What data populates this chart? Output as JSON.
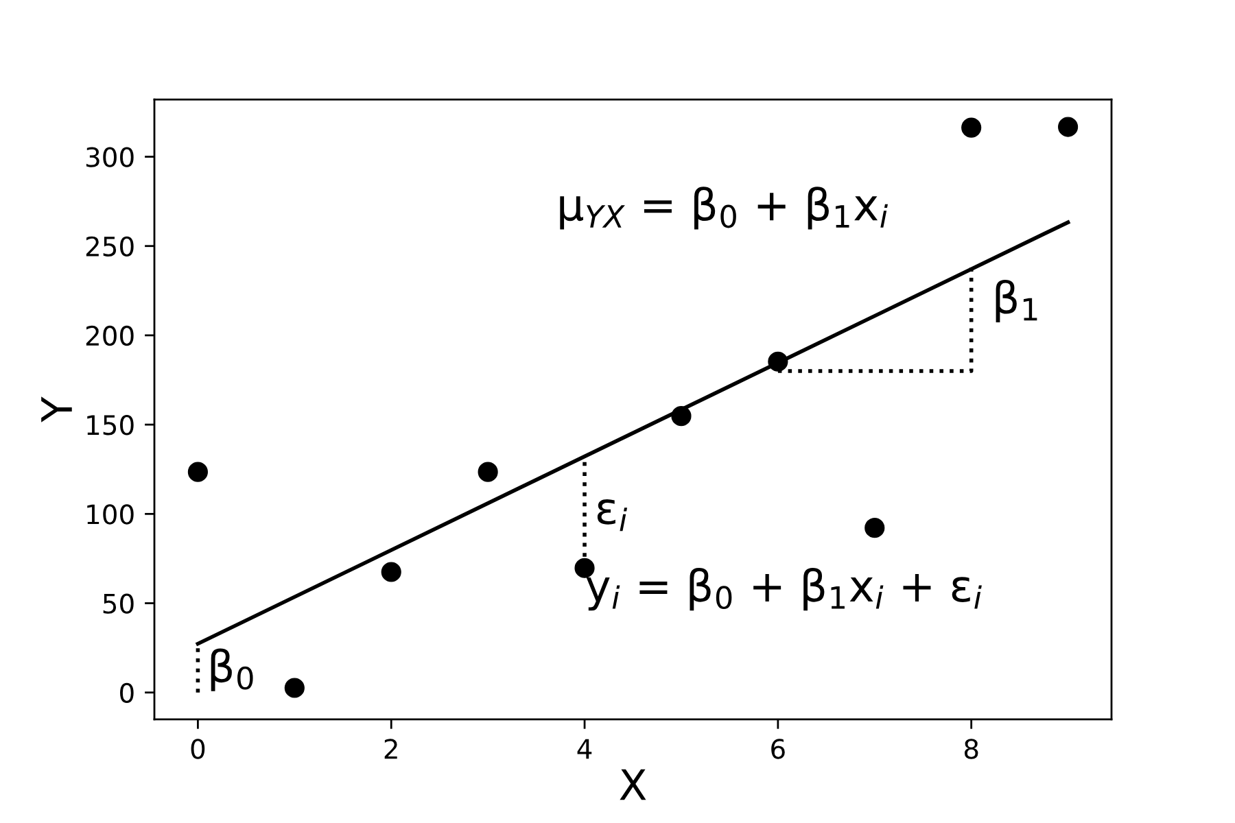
{
  "chart_data": {
    "type": "scatter",
    "xlabel": "X",
    "ylabel": "Y",
    "xlim": [
      -0.45,
      9.45
    ],
    "ylim": [
      -15,
      332
    ],
    "xticks": [
      0,
      2,
      4,
      6,
      8
    ],
    "yticks": [
      0,
      50,
      100,
      150,
      200,
      250,
      300
    ],
    "grid": false,
    "legend": false,
    "series": [
      {
        "color": "#000000",
        "marker": "circle",
        "x": [
          0,
          1,
          2,
          3,
          4,
          5,
          6,
          7,
          8,
          9
        ],
        "values": [
          123.5,
          2.6,
          67.5,
          123.5,
          69.7,
          154.8,
          185.3,
          92.2,
          316.3,
          316.7
        ]
      },
      {
        "type": "line",
        "color": "#000000",
        "line_style": "solid",
        "x": [
          0,
          9
        ],
        "values": [
          27.3,
          263.3
        ]
      },
      {
        "type": "line",
        "color": "#000000",
        "line_style": "dotted",
        "x": [
          0,
          0
        ],
        "values": [
          0,
          27.3
        ]
      },
      {
        "type": "line",
        "color": "#000000",
        "line_style": "dotted",
        "x": [
          4,
          4
        ],
        "values": [
          76,
          132
        ]
      },
      {
        "type": "line",
        "color": "#000000",
        "line_style": "dotted",
        "x": [
          6,
          8,
          8
        ],
        "values": [
          180,
          180,
          240
        ]
      }
    ],
    "annotations": [
      "μ$_{YX}$ = β$_{0}$ + β$_{1}$x$_{i}$",
      "β$_{1}$",
      "ε$_{i}$",
      "y$_{i}$ = β$_{0}$ + β$_{1}$x$_{i}$ + ε$_{i}$",
      "β$_{0}$"
    ]
  }
}
